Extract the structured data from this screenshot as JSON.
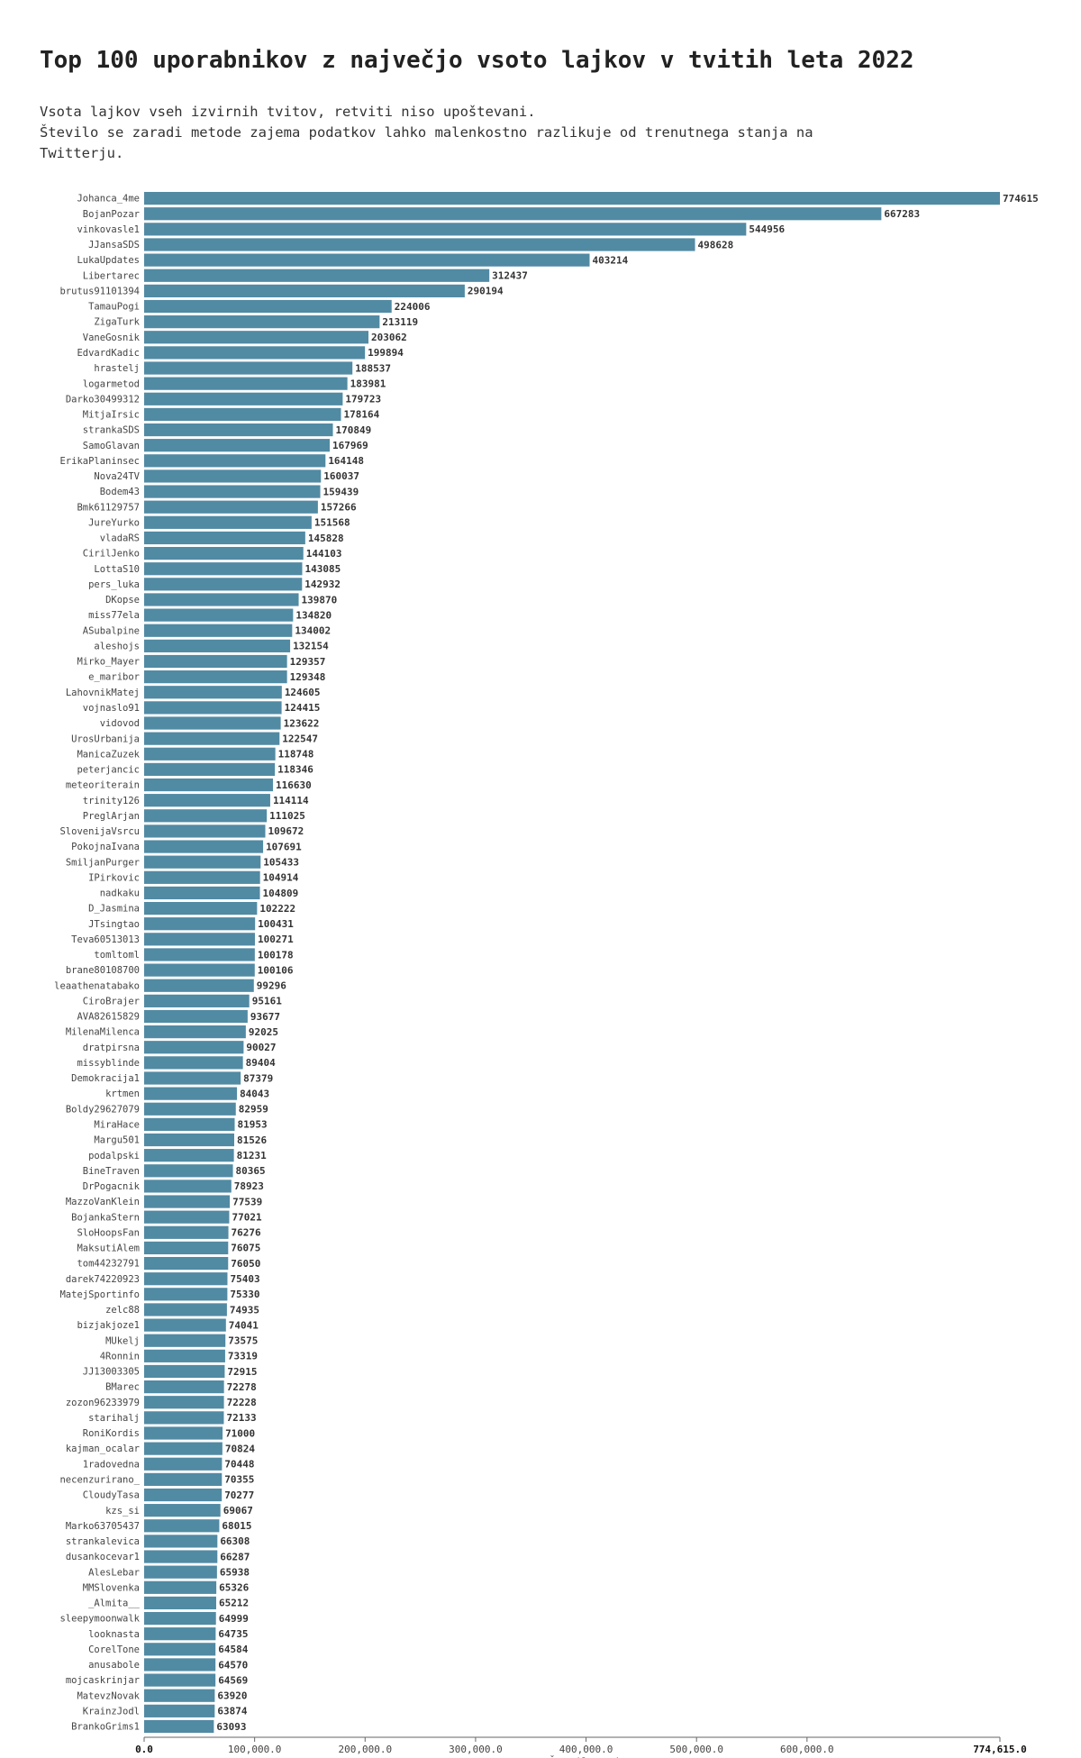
{
  "page": {
    "title": "Top 100 uporabnikov z največjo vsoto lajkov v tvitih leta 2022",
    "subtitle_lines": [
      "Vsota lajkov vseh izvirnih tvitov, retviti niso upoštevani.",
      "Število se zaradi metode zajema podatkov lahko malenkostno razlikuje od trenutnega stanja na",
      "Twitterju."
    ]
  },
  "chart_data": {
    "type": "bar",
    "orientation": "horizontal",
    "title": "Top 100 uporabnikov z največjo vsoto lajkov v tvitih leta 2022",
    "xlabel": "Število tvitov",
    "xlim": [
      0,
      774615
    ],
    "x_ticks": [
      0,
      100000,
      200000,
      300000,
      400000,
      500000,
      600000,
      774615
    ],
    "x_tick_labels": [
      "0.0",
      "100,000.0",
      "200,000.0",
      "300,000.0",
      "400,000.0",
      "500,000.0",
      "600,000.0",
      "774,615.0"
    ],
    "bar_color": "#518aa3",
    "categories": [
      "Johanca_4me",
      "BojanPozar",
      "vinkovasle1",
      "JJansaSDS",
      "LukaUpdates",
      "Libertarec",
      "brutus91101394",
      "TamauPogi",
      "ZigaTurk",
      "VaneGosnik",
      "EdvardKadic",
      "hrastelj",
      "logarmetod",
      "Darko30499312",
      "MitjaIrsic",
      "strankaSDS",
      "SamoGlavan",
      "ErikaPlaninsec",
      "Nova24TV",
      "Bodem43",
      "Bmk61129757",
      "JureYurko",
      "vladaRS",
      "CirilJenko",
      "LottaS10",
      "pers_luka",
      "DKopse",
      "miss77ela",
      "ASubalpine",
      "aleshojs",
      "Mirko_Mayer",
      "e_maribor",
      "LahovnikMatej",
      "vojnaslo91",
      "vidovod",
      "UrosUrbanija",
      "ManicaZuzek",
      "peterjancic",
      "meteoriterain",
      "trinity126",
      "PreglArjan",
      "SlovenijaVsrcu",
      "PokojnaIvana",
      "SmiljanPurger",
      "IPirkovic",
      "nadkaku",
      "D_Jasmina",
      "JTsingtao",
      "Teva60513013",
      "tomltoml",
      "brane80108700",
      "leaathenatabako",
      "CiroBrajer",
      "AVA82615829",
      "MilenaMilenca",
      "dratpirsna",
      "missyblinde",
      "Demokracija1",
      "krtmen",
      "Boldy29627079",
      "MiraHace",
      "Margu501",
      "podalpski",
      "BineTraven",
      "DrPogacnik",
      "MazzoVanKlein",
      "BojankaStern",
      "SloHoopsFan",
      "MaksutiAlem",
      "tom44232791",
      "darek74220923",
      "MatejSportinfo",
      "zelc88",
      "bizjakjoze1",
      "MUkelj",
      "4Ronnin",
      "JJ13003305",
      "BMarec",
      "zozon96233979",
      "starihalj",
      "RoniKordis",
      "kajman_ocalar",
      "1radovedna",
      "necenzurirano_",
      "CloudyTasa",
      "kzs_si",
      "Marko63705437",
      "strankalevica",
      "dusankocevar1",
      "AlesLebar",
      "MMSlovenka",
      "_Almita__",
      "sleepymoonwalk",
      "looknasta",
      "CorelTone",
      "anusabole",
      "mojcaskrinjar",
      "MatevzNovak",
      "KrainzJodl",
      "BrankoGrims1"
    ],
    "values": [
      774615,
      667283,
      544956,
      498628,
      403214,
      312437,
      290194,
      224006,
      213119,
      203062,
      199894,
      188537,
      183981,
      179723,
      178164,
      170849,
      167969,
      164148,
      160037,
      159439,
      157266,
      151568,
      145828,
      144103,
      143085,
      142932,
      139870,
      134820,
      134002,
      132154,
      129357,
      129348,
      124605,
      124415,
      123622,
      122547,
      118748,
      118346,
      116630,
      114114,
      111025,
      109672,
      107691,
      105433,
      104914,
      104809,
      102222,
      100431,
      100271,
      100178,
      100106,
      99296,
      95161,
      93677,
      92025,
      90027,
      89404,
      87379,
      84043,
      82959,
      81953,
      81526,
      81231,
      80365,
      78923,
      77539,
      77021,
      76276,
      76075,
      76050,
      75403,
      75330,
      74935,
      74041,
      73575,
      73319,
      72915,
      72278,
      72228,
      72133,
      71000,
      70824,
      70448,
      70355,
      70277,
      69067,
      68015,
      66308,
      66287,
      65938,
      65326,
      65212,
      64999,
      64735,
      64584,
      64570,
      64569,
      63920,
      63874,
      63093
    ],
    "legend": "none",
    "grid": false
  }
}
